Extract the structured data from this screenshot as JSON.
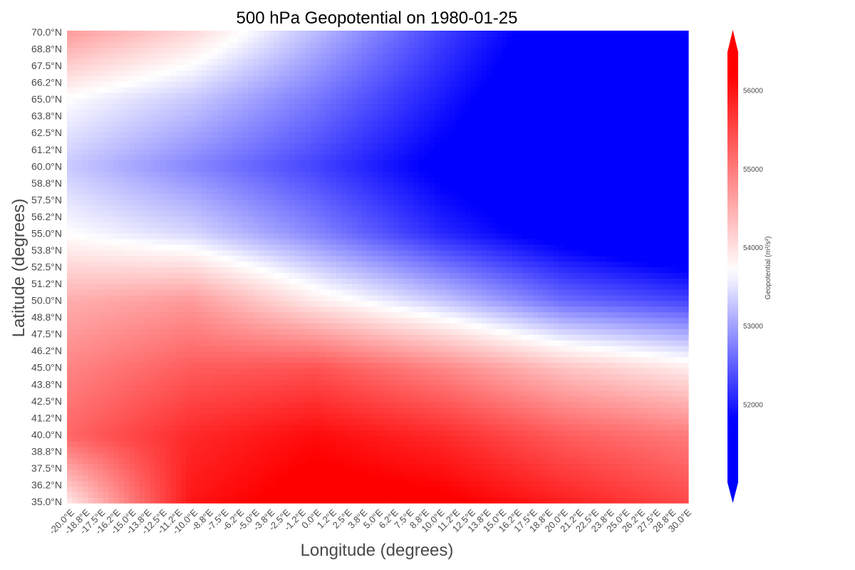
{
  "chart_data": {
    "type": "heatmap",
    "title": "500 hPa Geopotential on 1980-01-25",
    "xlabel": "Longitude (degrees)",
    "ylabel": "Latitude (degrees)",
    "x_ticks": [
      "-20.0°E",
      "-18.8°E",
      "-17.5°E",
      "-16.2°E",
      "-15.0°E",
      "-13.8°E",
      "-12.5°E",
      "-11.2°E",
      "-10.0°E",
      "-8.8°E",
      "-7.5°E",
      "-6.2°E",
      "-5.0°E",
      "-3.8°E",
      "-2.5°E",
      "-1.2°E",
      "0.0°E",
      "1.2°E",
      "2.5°E",
      "3.8°E",
      "5.0°E",
      "6.2°E",
      "7.5°E",
      "8.8°E",
      "10.0°E",
      "11.2°E",
      "12.5°E",
      "13.8°E",
      "15.0°E",
      "16.2°E",
      "17.5°E",
      "18.8°E",
      "20.0°E",
      "21.2°E",
      "22.5°E",
      "23.8°E",
      "25.0°E",
      "26.2°E",
      "27.5°E",
      "28.8°E",
      "30.0°E"
    ],
    "y_ticks": [
      "70.0°N",
      "68.8°N",
      "67.5°N",
      "66.2°N",
      "65.0°N",
      "63.8°N",
      "62.5°N",
      "61.2°N",
      "60.0°N",
      "58.8°N",
      "57.5°N",
      "56.2°N",
      "55.0°N",
      "53.8°N",
      "52.5°N",
      "51.2°N",
      "50.0°N",
      "48.8°N",
      "47.5°N",
      "46.2°N",
      "45.0°N",
      "43.8°N",
      "42.5°N",
      "41.2°N",
      "40.0°N",
      "38.8°N",
      "37.5°N",
      "36.2°N",
      "35.0°N"
    ],
    "xlim": [
      -20.0,
      30.0
    ],
    "ylim": [
      35.0,
      70.0
    ],
    "colorbar": {
      "label": "Geopotential (m²/s²)",
      "ticks": [
        52000,
        53000,
        54000,
        55000,
        56000
      ],
      "vmin": 51000,
      "vmax": 56500,
      "extend": "both",
      "colormap": "bwr",
      "low_color": "#0000ff",
      "mid_color": "#ffffff",
      "high_color": "#ff0000"
    },
    "control_grid": {
      "lon": [
        -20,
        -10,
        0,
        10,
        20,
        30
      ],
      "lat": [
        35,
        40,
        45,
        50,
        55,
        60,
        65,
        70
      ],
      "z": [
        [
          53900,
          56000,
          56400,
          56300,
          55900,
          55500
        ],
        [
          55200,
          55800,
          56100,
          55800,
          55300,
          55000
        ],
        [
          54900,
          55300,
          55400,
          54900,
          54300,
          53900
        ],
        [
          54500,
          54700,
          53900,
          53300,
          52600,
          52300
        ],
        [
          53700,
          53400,
          52800,
          52100,
          51600,
          51200
        ],
        [
          53300,
          52800,
          52300,
          51700,
          51300,
          51200
        ],
        [
          53700,
          53300,
          52700,
          52000,
          51300,
          51200
        ],
        [
          54700,
          54100,
          53200,
          52300,
          51500,
          51200
        ]
      ]
    }
  }
}
